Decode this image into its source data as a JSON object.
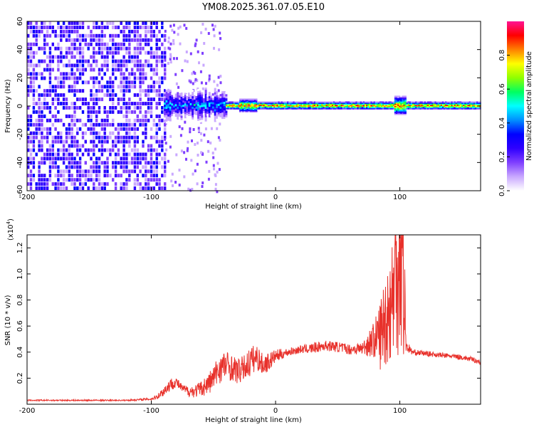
{
  "title": "YM08.2025.361.07.05.E10",
  "chart_data": [
    {
      "type": "heatmap",
      "xlabel": "Height of straight line (km)",
      "ylabel": "Frequency (Hz)",
      "xlim": [
        -200,
        165
      ],
      "ylim": [
        -60,
        60
      ],
      "x_ticks": [
        -200,
        -100,
        0,
        100
      ],
      "y_ticks": [
        -60,
        -40,
        -20,
        0,
        20,
        40,
        60
      ],
      "colorbar": {
        "label": "Normalized spectral amplitude",
        "range": [
          0,
          1
        ],
        "ticks": [
          0.0,
          0.2,
          0.4,
          0.6,
          0.8
        ],
        "colors": [
          "#ffffff",
          "#c9a8ff",
          "#7f3fff",
          "#2f00ff",
          "#0000ff",
          "#0090ff",
          "#00ffff",
          "#00ff60",
          "#90ff00",
          "#ffff00",
          "#ff8000",
          "#ff0000",
          "#ff1493"
        ]
      },
      "regions": [
        {
          "x": [
            -200,
            -90
          ],
          "desc_value": 0.25,
          "pattern": "broadband noise"
        },
        {
          "x": [
            -90,
            -40
          ],
          "bandwidth_hz": 10,
          "peak": 0.45
        },
        {
          "x": [
            -40,
            165
          ],
          "bandwidth_hz": 3,
          "peak": 0.95,
          "center_hz": 0
        }
      ]
    },
    {
      "type": "line",
      "xlabel": "Height of straight line (km)",
      "ylabel": "SNR (10 * v/v)",
      "y_scale_label": "(x10",
      "y_scale_exp": "4",
      "y_scale_close": ")",
      "xlim": [
        -200,
        165
      ],
      "ylim": [
        0,
        1.3
      ],
      "x_ticks": [
        -200,
        -100,
        0,
        100
      ],
      "y_ticks": [
        0.2,
        0.4,
        0.6,
        0.8,
        1.0,
        1.2
      ],
      "color": "#e8312b",
      "series": [
        {
          "x": [
            -200,
            -180,
            -160,
            -140,
            -120,
            -100,
            -95,
            -90,
            -85,
            -80,
            -75,
            -70,
            -65,
            -60,
            -55,
            -50,
            -45,
            -40,
            -35,
            -30,
            -25,
            -20,
            -15,
            -10,
            -5,
            0,
            10,
            20,
            30,
            40,
            50,
            60,
            70,
            80,
            85,
            90,
            95,
            100,
            103,
            105,
            110,
            120,
            130,
            140,
            150,
            160,
            165
          ],
          "values": [
            0.03,
            0.03,
            0.03,
            0.03,
            0.03,
            0.04,
            0.06,
            0.1,
            0.15,
            0.17,
            0.12,
            0.1,
            0.1,
            0.12,
            0.15,
            0.2,
            0.28,
            0.3,
            0.28,
            0.25,
            0.28,
            0.33,
            0.36,
            0.3,
            0.33,
            0.37,
            0.4,
            0.42,
            0.43,
            0.45,
            0.44,
            0.42,
            0.43,
            0.5,
            0.55,
            0.7,
            0.85,
            1.28,
            1.0,
            0.45,
            0.4,
            0.39,
            0.38,
            0.37,
            0.36,
            0.34,
            0.32
          ],
          "spread": [
            0.005,
            0.005,
            0.005,
            0.005,
            0.005,
            0.01,
            0.02,
            0.04,
            0.05,
            0.04,
            0.03,
            0.04,
            0.05,
            0.06,
            0.08,
            0.1,
            0.12,
            0.12,
            0.1,
            0.1,
            0.1,
            0.12,
            0.1,
            0.08,
            0.07,
            0.05,
            0.03,
            0.03,
            0.04,
            0.04,
            0.04,
            0.04,
            0.05,
            0.15,
            0.3,
            0.4,
            0.5,
            0.9,
            0.7,
            0.05,
            0.02,
            0.02,
            0.02,
            0.02,
            0.02,
            0.02,
            0.02
          ]
        }
      ]
    }
  ]
}
